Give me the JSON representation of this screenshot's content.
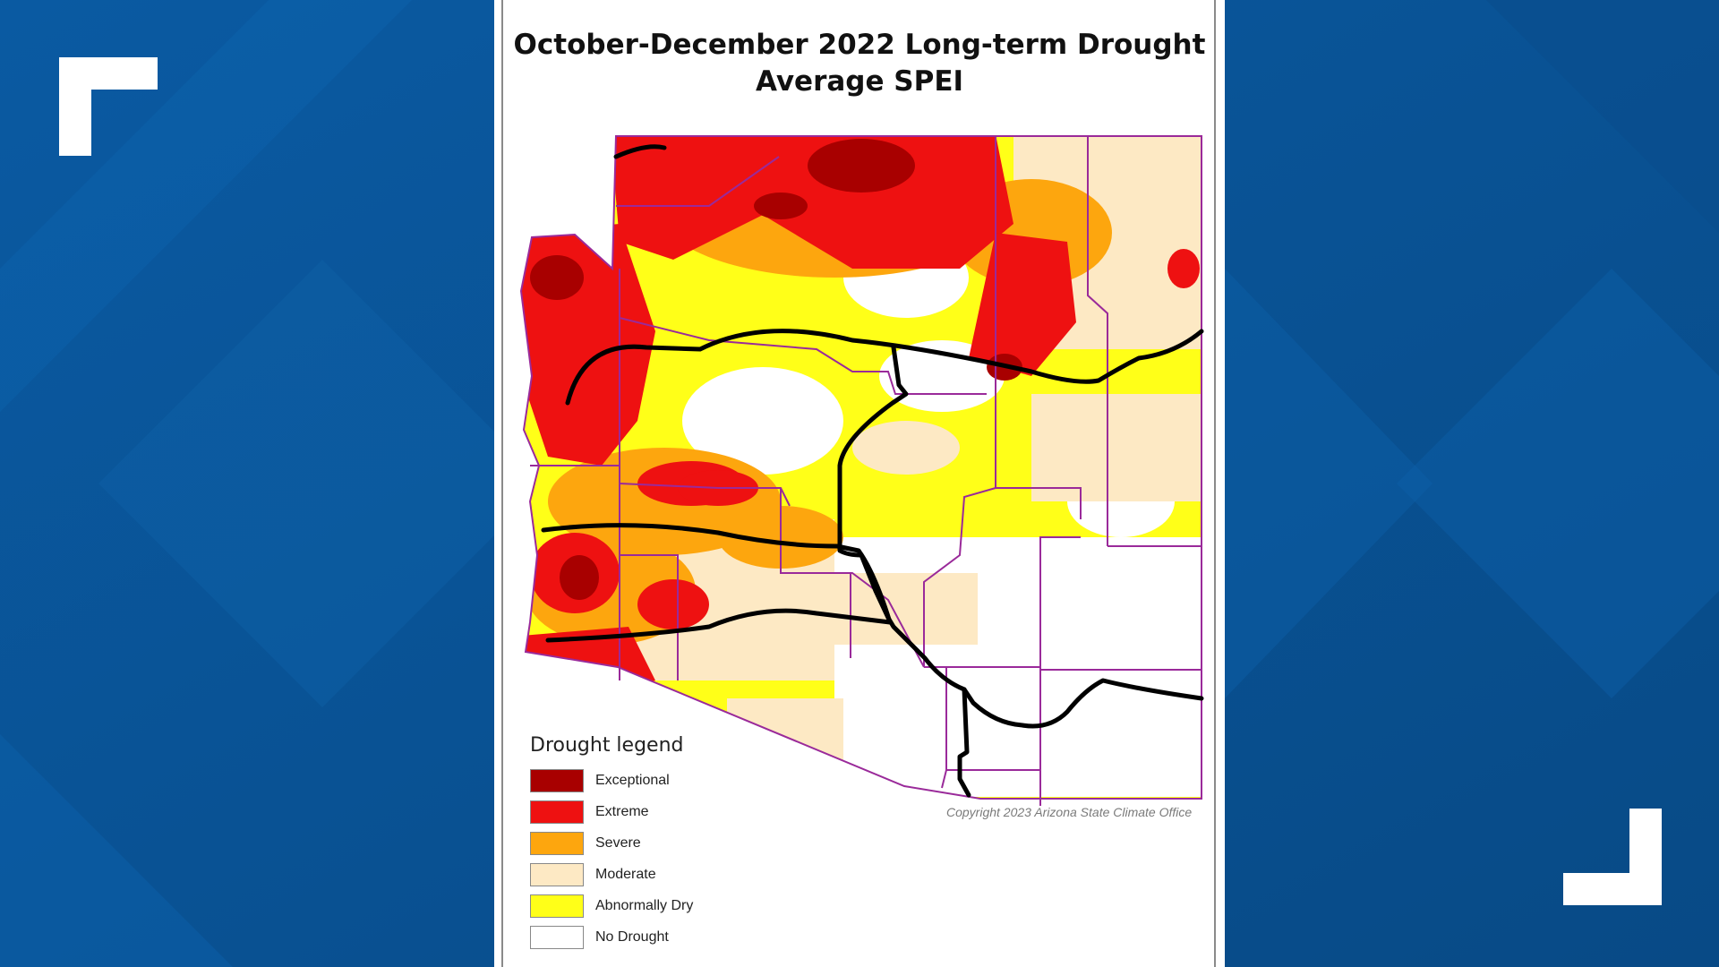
{
  "title": {
    "line1": "October-December 2022 Long-term Drought",
    "line2": "Average SPEI"
  },
  "copyright": "Copyright 2023 Arizona State Climate Office",
  "legend": {
    "title": "Drought legend",
    "items": [
      {
        "label": "Exceptional",
        "color": "#a80000"
      },
      {
        "label": "Extreme",
        "color": "#ee1111"
      },
      {
        "label": "Severe",
        "color": "#fda60e"
      },
      {
        "label": "Moderate",
        "color": "#fde9c4"
      },
      {
        "label": "Abnormally Dry",
        "color": "#ffff18"
      },
      {
        "label": "No Drought",
        "color": "#ffffff"
      }
    ]
  },
  "map": {
    "region": "Arizona",
    "overlays": [
      "county-boundaries",
      "interstate-highways"
    ]
  },
  "colors": {
    "background": "#0b5596",
    "county_lines": "#9a2a9a",
    "highways": "#000000"
  }
}
